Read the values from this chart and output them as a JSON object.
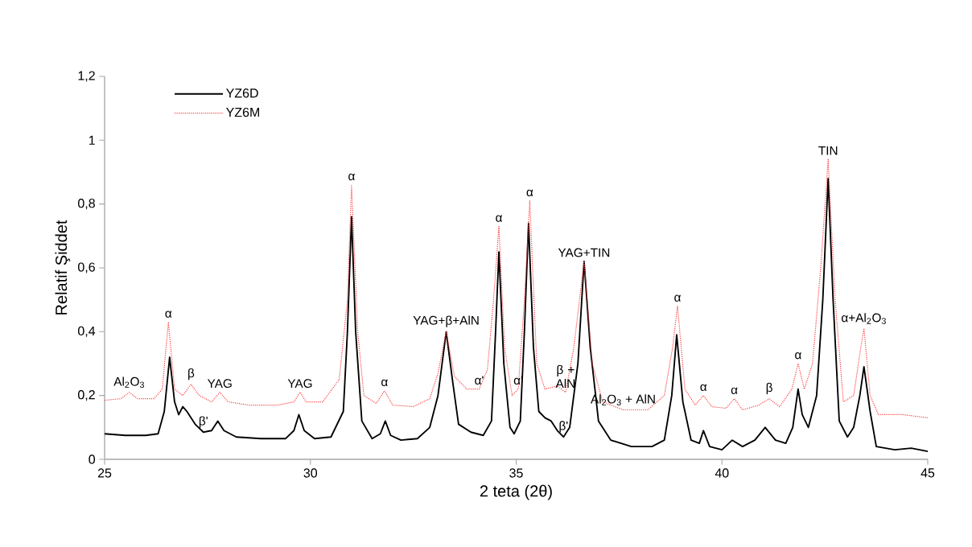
{
  "chart_data": {
    "type": "line",
    "xlabel": "2 teta (2θ)",
    "ylabel": "Relatif Şiddet",
    "xlim": [
      25,
      45
    ],
    "xticks": [
      25,
      30,
      35,
      40,
      45
    ],
    "ylim": [
      0,
      1.2
    ],
    "yticks": [
      {
        "value": 0,
        "label": "0"
      },
      {
        "value": 0.2,
        "label": "0,2"
      },
      {
        "value": 0.4,
        "label": "0,4"
      },
      {
        "value": 0.6,
        "label": "0,6"
      },
      {
        "value": 0.8,
        "label": "0,8"
      },
      {
        "value": 1,
        "label": "1"
      },
      {
        "value": 1.2,
        "label": "1,2"
      }
    ],
    "legend": "top left",
    "marker": "none",
    "grid": false,
    "series": [
      {
        "name": "YZ6D",
        "color": "#000000",
        "line_style": "solid",
        "x": [
          25.0,
          25.5,
          26.0,
          26.3,
          26.45,
          26.58,
          26.7,
          26.8,
          26.9,
          27.0,
          27.2,
          27.4,
          27.6,
          27.75,
          27.9,
          28.2,
          28.8,
          29.4,
          29.6,
          29.72,
          29.85,
          30.1,
          30.5,
          30.8,
          30.9,
          31.0,
          31.1,
          31.25,
          31.5,
          31.7,
          31.82,
          31.95,
          32.2,
          32.6,
          32.9,
          33.1,
          33.3,
          33.45,
          33.6,
          33.9,
          34.2,
          34.4,
          34.5,
          34.58,
          34.7,
          34.85,
          34.95,
          35.1,
          35.2,
          35.3,
          35.42,
          35.55,
          35.7,
          35.85,
          36.0,
          36.15,
          36.3,
          36.5,
          36.65,
          36.8,
          37.0,
          37.3,
          37.8,
          38.3,
          38.6,
          38.78,
          38.9,
          39.05,
          39.25,
          39.45,
          39.55,
          39.7,
          40.0,
          40.25,
          40.5,
          40.8,
          41.05,
          41.3,
          41.55,
          41.72,
          41.85,
          41.95,
          42.1,
          42.3,
          42.45,
          42.58,
          42.7,
          42.85,
          43.05,
          43.2,
          43.35,
          43.45,
          43.6,
          43.75,
          44.2,
          44.6,
          45.0
        ],
        "values": [
          0.08,
          0.075,
          0.075,
          0.08,
          0.15,
          0.32,
          0.18,
          0.14,
          0.165,
          0.15,
          0.11,
          0.085,
          0.09,
          0.12,
          0.09,
          0.07,
          0.065,
          0.065,
          0.09,
          0.14,
          0.09,
          0.065,
          0.07,
          0.15,
          0.4,
          0.76,
          0.4,
          0.12,
          0.065,
          0.08,
          0.12,
          0.075,
          0.06,
          0.065,
          0.1,
          0.2,
          0.4,
          0.25,
          0.11,
          0.085,
          0.075,
          0.12,
          0.4,
          0.65,
          0.3,
          0.1,
          0.08,
          0.12,
          0.4,
          0.74,
          0.35,
          0.15,
          0.13,
          0.12,
          0.09,
          0.07,
          0.1,
          0.3,
          0.62,
          0.35,
          0.12,
          0.06,
          0.04,
          0.04,
          0.06,
          0.2,
          0.39,
          0.18,
          0.06,
          0.05,
          0.09,
          0.04,
          0.03,
          0.06,
          0.04,
          0.06,
          0.1,
          0.06,
          0.05,
          0.1,
          0.22,
          0.14,
          0.1,
          0.2,
          0.5,
          0.88,
          0.5,
          0.12,
          0.07,
          0.1,
          0.2,
          0.29,
          0.15,
          0.04,
          0.03,
          0.035,
          0.025
        ]
      },
      {
        "name": "YZ6M",
        "color": "#ff4040",
        "line_style": "dotted",
        "x": [
          25.0,
          25.4,
          25.6,
          25.8,
          26.2,
          26.4,
          26.55,
          26.7,
          26.9,
          27.1,
          27.3,
          27.6,
          27.8,
          28.0,
          28.5,
          29.2,
          29.6,
          29.75,
          29.9,
          30.3,
          30.7,
          30.9,
          31.0,
          31.15,
          31.3,
          31.6,
          31.8,
          32.0,
          32.5,
          32.9,
          33.1,
          33.3,
          33.5,
          33.8,
          34.1,
          34.3,
          34.45,
          34.58,
          34.72,
          34.9,
          35.05,
          35.2,
          35.33,
          35.5,
          35.7,
          36.0,
          36.2,
          36.4,
          36.65,
          36.85,
          37.1,
          37.6,
          38.2,
          38.6,
          38.8,
          38.92,
          39.1,
          39.35,
          39.55,
          39.75,
          40.1,
          40.3,
          40.5,
          40.9,
          41.15,
          41.4,
          41.7,
          41.85,
          42.0,
          42.2,
          42.4,
          42.58,
          42.75,
          42.95,
          43.2,
          43.35,
          43.45,
          43.6,
          43.8,
          44.4,
          45.0
        ],
        "values": [
          0.185,
          0.19,
          0.21,
          0.19,
          0.19,
          0.22,
          0.43,
          0.22,
          0.2,
          0.235,
          0.2,
          0.18,
          0.21,
          0.18,
          0.17,
          0.17,
          0.18,
          0.21,
          0.18,
          0.18,
          0.25,
          0.5,
          0.86,
          0.4,
          0.2,
          0.175,
          0.215,
          0.17,
          0.165,
          0.19,
          0.27,
          0.4,
          0.26,
          0.22,
          0.22,
          0.28,
          0.5,
          0.73,
          0.35,
          0.2,
          0.22,
          0.5,
          0.81,
          0.3,
          0.22,
          0.23,
          0.21,
          0.35,
          0.62,
          0.3,
          0.18,
          0.155,
          0.155,
          0.2,
          0.35,
          0.48,
          0.22,
          0.17,
          0.2,
          0.165,
          0.16,
          0.19,
          0.155,
          0.17,
          0.19,
          0.165,
          0.22,
          0.3,
          0.22,
          0.3,
          0.6,
          0.94,
          0.5,
          0.18,
          0.2,
          0.33,
          0.41,
          0.2,
          0.14,
          0.14,
          0.13
        ]
      }
    ],
    "annotations": [
      {
        "text": "Al$_{2}$O$_{3}$",
        "x": 25.6,
        "y": 0.21
      },
      {
        "text": "α",
        "x": 26.55,
        "y": 0.43
      },
      {
        "text": "β",
        "x": 27.1,
        "y": 0.235
      },
      {
        "text": "β'",
        "x": 27.4,
        "y": 0.085
      },
      {
        "text": "YAG",
        "x": 27.8,
        "y": 0.21
      },
      {
        "text": "YAG",
        "x": 29.75,
        "y": 0.21
      },
      {
        "text": "α",
        "x": 31.0,
        "y": 0.86
      },
      {
        "text": "α",
        "x": 31.8,
        "y": 0.215
      },
      {
        "text": "YAG+β+AlN",
        "x": 33.3,
        "y": 0.4
      },
      {
        "text": "α'",
        "x": 34.1,
        "y": 0.22
      },
      {
        "text": "α",
        "x": 34.58,
        "y": 0.73
      },
      {
        "text": "α'",
        "x": 35.05,
        "y": 0.22
      },
      {
        "text": "α",
        "x": 35.33,
        "y": 0.81
      },
      {
        "text": "β + AlN",
        "x": 36.2,
        "y": 0.21
      },
      {
        "text": "β'",
        "x": 36.15,
        "y": 0.07
      },
      {
        "text": "YAG+TIN",
        "x": 36.65,
        "y": 0.62
      },
      {
        "text": "Al$_{2}$O$_{3}$ + AlN",
        "x": 37.6,
        "y": 0.155
      },
      {
        "text": "α",
        "x": 38.92,
        "y": 0.48
      },
      {
        "text": "α",
        "x": 39.55,
        "y": 0.2
      },
      {
        "text": "α",
        "x": 40.3,
        "y": 0.19
      },
      {
        "text": "β",
        "x": 41.15,
        "y": 0.19
      },
      {
        "text": "α",
        "x": 41.85,
        "y": 0.3
      },
      {
        "text": "TIN",
        "x": 42.58,
        "y": 0.94
      },
      {
        "text": "α+Al$_{2}$O$_{3}$",
        "x": 43.45,
        "y": 0.41
      }
    ]
  }
}
